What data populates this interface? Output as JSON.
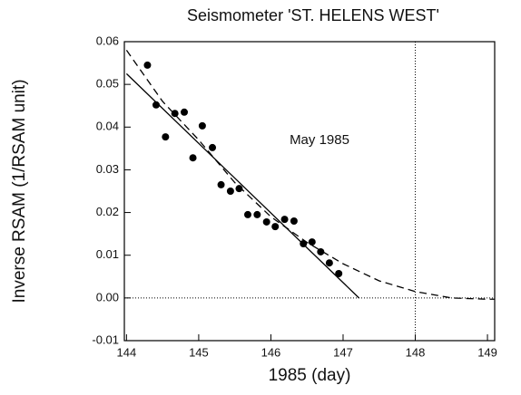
{
  "chart_data": {
    "type": "scatter",
    "title": "Seismometer 'ST. HELENS WEST'",
    "xlabel": "1985 (day)",
    "ylabel": "Inverse RSAM (1/RSAM unit)",
    "annotation": "May 1985",
    "xlim": [
      143.97,
      149.1
    ],
    "ylim": [
      -0.01,
      0.06
    ],
    "xticks": [
      144,
      145,
      146,
      147,
      148,
      149
    ],
    "yticks": [
      {
        "value": -0.01,
        "label": "-0.01"
      },
      {
        "value": 0,
        "label": "0.00"
      },
      {
        "value": 0.01,
        "label": "0.01"
      },
      {
        "value": 0.02,
        "label": "0.02"
      },
      {
        "value": 0.03,
        "label": "0.03"
      },
      {
        "value": 0.04,
        "label": "0.04"
      },
      {
        "value": 0.05,
        "label": "0.05"
      },
      {
        "value": 0.06,
        "label": "0.06"
      }
    ],
    "hline": 0,
    "vline": 148,
    "series": [
      {
        "mode": "markers",
        "color": "#000000",
        "x": [
          144.29,
          144.41,
          144.54,
          144.67,
          144.8,
          144.92,
          145.05,
          145.19,
          145.31,
          145.44,
          145.56,
          145.68,
          145.81,
          145.94,
          146.06,
          146.19,
          146.32,
          146.45,
          146.57,
          146.69,
          146.81,
          146.94
        ],
        "values": [
          0.0545,
          0.0452,
          0.0377,
          0.0432,
          0.0435,
          0.0328,
          0.0403,
          0.0352,
          0.0265,
          0.025,
          0.0256,
          0.0195,
          0.0195,
          0.0178,
          0.0167,
          0.0184,
          0.018,
          0.0127,
          0.0131,
          0.0108,
          0.0082,
          0.0057
        ]
      },
      {
        "mode": "line",
        "dash": "solid",
        "color": "#000000",
        "x": [
          144,
          147.22
        ],
        "values": [
          0.0525,
          0
        ]
      },
      {
        "mode": "line",
        "dash": "dashed",
        "color": "#000000",
        "x": [
          144,
          144.5,
          145,
          145.5,
          146,
          146.5,
          147,
          147.5,
          148,
          148.5,
          149,
          149.1
        ],
        "values": [
          0.058,
          0.046,
          0.037,
          0.027,
          0.019,
          0.013,
          0.008,
          0.004,
          0.0015,
          0,
          -0.0003,
          -0.0003
        ]
      }
    ]
  }
}
